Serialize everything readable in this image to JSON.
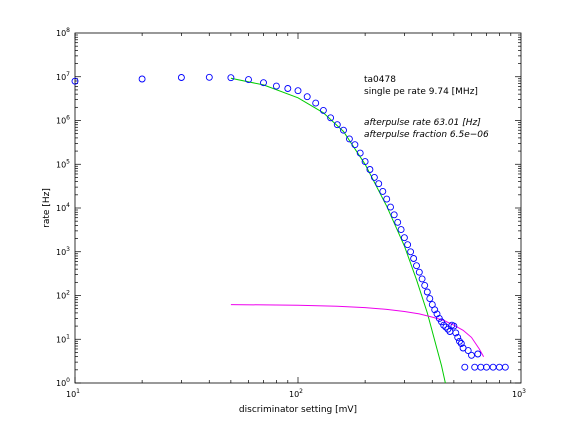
{
  "chart_data": {
    "type": "scatter",
    "x_scale": "log",
    "y_scale": "log",
    "xlim": [
      10,
      1000
    ],
    "ylim": [
      1,
      100000000
    ],
    "xlabel": "discriminator setting [mV]",
    "ylabel": "rate [Hz]",
    "x_ticks": [
      {
        "base": "10",
        "exp": "1",
        "value": 10
      },
      {
        "base": "10",
        "exp": "2",
        "value": 100
      },
      {
        "base": "10",
        "exp": "3",
        "value": 1000
      }
    ],
    "y_ticks": [
      {
        "base": "10",
        "exp": "0",
        "value": 1
      },
      {
        "base": "10",
        "exp": "1",
        "value": 10
      },
      {
        "base": "10",
        "exp": "2",
        "value": 100
      },
      {
        "base": "10",
        "exp": "3",
        "value": 1000
      },
      {
        "base": "10",
        "exp": "4",
        "value": 10000
      },
      {
        "base": "10",
        "exp": "5",
        "value": 100000
      },
      {
        "base": "10",
        "exp": "6",
        "value": 1000000
      },
      {
        "base": "10",
        "exp": "7",
        "value": 10000000
      },
      {
        "base": "10",
        "exp": "8",
        "value": 100000000
      }
    ],
    "grid": false,
    "annotations": {
      "line1": "ta0478",
      "line2": "single pe rate 9.74 [MHz]",
      "line3": "afterpulse rate 63.01 [Hz]",
      "line4": "afterpulse fraction 6.5e−06"
    },
    "series": [
      {
        "marker": "circle",
        "color": "#0000ff",
        "points": [
          [
            10,
            7900000
          ],
          [
            20,
            8900000
          ],
          [
            30,
            9600000
          ],
          [
            40,
            9700000
          ],
          [
            50,
            9500000
          ],
          [
            60,
            8600000
          ],
          [
            70,
            7300000
          ],
          [
            80,
            6100000
          ],
          [
            90,
            5400000
          ],
          [
            100,
            4800000
          ],
          [
            110,
            3500000
          ],
          [
            120,
            2500000
          ],
          [
            130,
            1700000
          ],
          [
            140,
            1150000
          ],
          [
            150,
            800000
          ],
          [
            160,
            600000
          ],
          [
            170,
            380000
          ],
          [
            180,
            280000
          ],
          [
            190,
            180000
          ],
          [
            200,
            115000
          ],
          [
            210,
            76000
          ],
          [
            220,
            50000
          ],
          [
            230,
            36000
          ],
          [
            240,
            24000
          ],
          [
            250,
            16000
          ],
          [
            260,
            10500
          ],
          [
            270,
            7000
          ],
          [
            280,
            4700
          ],
          [
            290,
            3200
          ],
          [
            300,
            2100
          ],
          [
            310,
            1450
          ],
          [
            320,
            1000
          ],
          [
            330,
            700
          ],
          [
            340,
            480
          ],
          [
            350,
            340
          ],
          [
            360,
            240
          ],
          [
            370,
            170
          ],
          [
            380,
            120
          ],
          [
            390,
            85
          ],
          [
            400,
            62
          ],
          [
            410,
            47
          ],
          [
            420,
            38
          ],
          [
            430,
            30
          ],
          [
            440,
            25
          ],
          [
            450,
            21
          ],
          [
            460,
            19
          ],
          [
            470,
            17
          ],
          [
            480,
            15
          ],
          [
            490,
            21
          ],
          [
            500,
            20
          ],
          [
            510,
            14
          ],
          [
            520,
            11
          ],
          [
            530,
            9
          ],
          [
            540,
            8
          ],
          [
            550,
            6.3
          ],
          [
            560,
            2.3
          ],
          [
            580,
            5.5
          ],
          [
            600,
            4.3
          ],
          [
            620,
            2.3
          ],
          [
            640,
            4.6
          ],
          [
            660,
            2.3
          ],
          [
            700,
            2.3
          ],
          [
            750,
            2.3
          ],
          [
            800,
            2.3
          ],
          [
            850,
            2.3
          ]
        ]
      }
    ],
    "lines": [
      {
        "color": "#00cc00",
        "points": [
          [
            50,
            9200000
          ],
          [
            70,
            6500000
          ],
          [
            100,
            3300000
          ],
          [
            130,
            1500000
          ],
          [
            160,
            560000
          ],
          [
            200,
            100000
          ],
          [
            250,
            11000
          ],
          [
            300,
            1350
          ],
          [
            340,
            230
          ],
          [
            380,
            40
          ],
          [
            420,
            6
          ],
          [
            440,
            2.5
          ],
          [
            460,
            0.9
          ]
        ]
      },
      {
        "color": "#ee00ee",
        "points": [
          [
            50,
            62
          ],
          [
            100,
            60
          ],
          [
            150,
            57
          ],
          [
            200,
            53
          ],
          [
            250,
            48
          ],
          [
            300,
            43
          ],
          [
            350,
            38
          ],
          [
            400,
            32
          ],
          [
            450,
            27
          ],
          [
            500,
            21
          ],
          [
            550,
            16
          ],
          [
            600,
            11
          ],
          [
            650,
            6
          ],
          [
            680,
            4
          ]
        ]
      }
    ]
  }
}
